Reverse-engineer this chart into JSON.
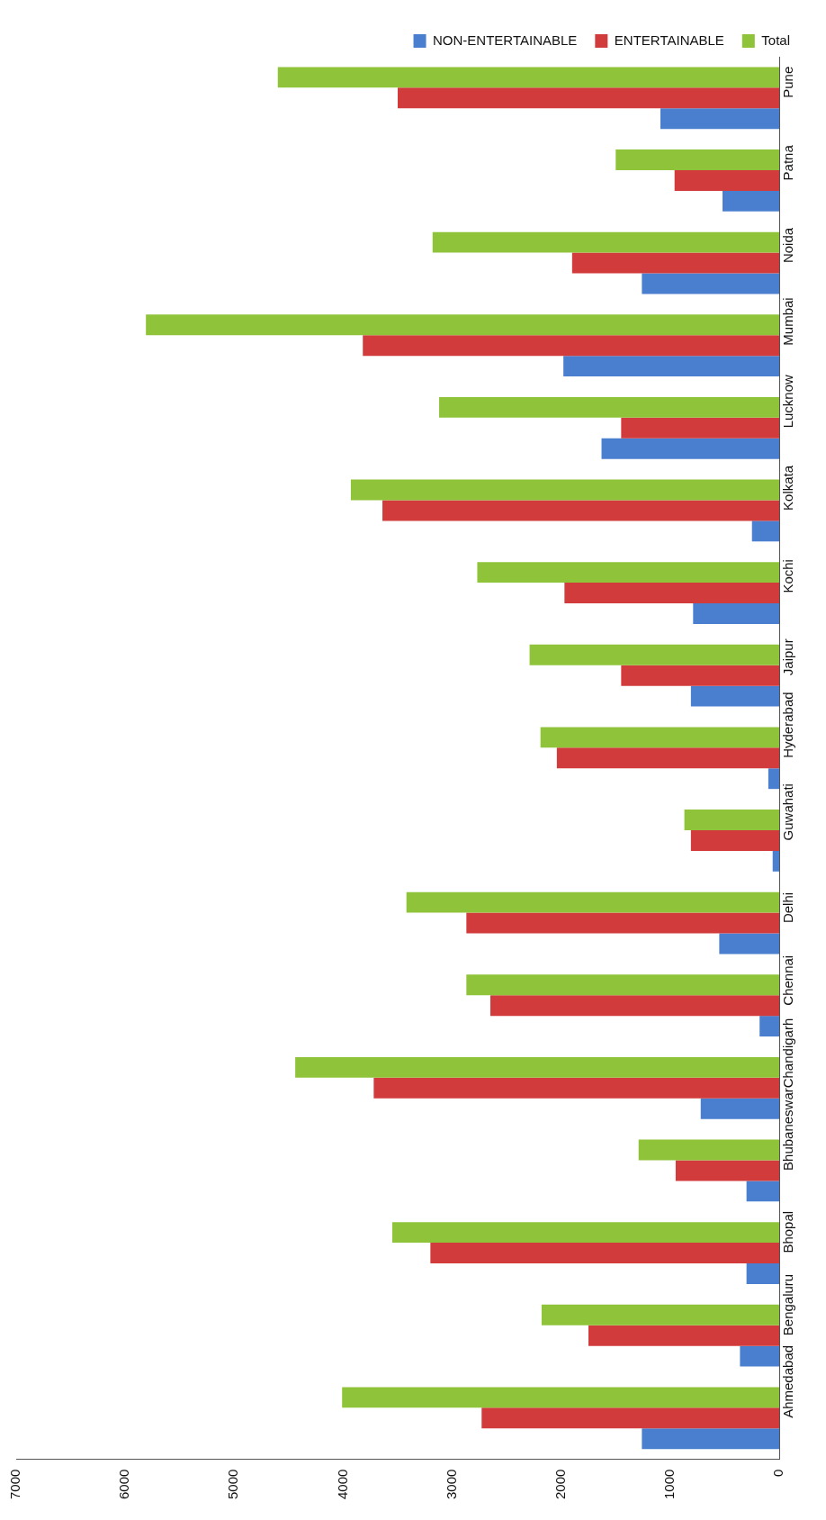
{
  "chart_data": {
    "type": "bar",
    "orientation": "horizontal",
    "categories": [
      "Pune",
      "Patna",
      "Noida",
      "Mumbai",
      "Lucknow",
      "Kolkata",
      "Kochi",
      "Jaipur",
      "Hyderabad",
      "Guwahati",
      "Delhi",
      "Chennai",
      "Chandigarh",
      "Bhubaneswar",
      "Bhopal",
      "Bengaluru",
      "Ahmedabad"
    ],
    "series": [
      {
        "name": "NON-ENTERTAINABLE",
        "color": "#4a7fd0",
        "values": [
          1090,
          520,
          1260,
          1980,
          1630,
          250,
          790,
          810,
          100,
          60,
          550,
          180,
          720,
          300,
          300,
          360,
          1260
        ]
      },
      {
        "name": "ENTERTAINABLE",
        "color": "#d23b3b",
        "values": [
          3500,
          960,
          1900,
          3820,
          1450,
          3640,
          1970,
          1450,
          2040,
          810,
          2870,
          2650,
          3720,
          950,
          3200,
          1750,
          2730
        ]
      },
      {
        "name": "Total",
        "color": "#8fc43a",
        "values": [
          4600,
          1500,
          3180,
          5810,
          3120,
          3930,
          2770,
          2290,
          2190,
          870,
          3420,
          2870,
          4440,
          1290,
          3550,
          2180,
          4010
        ]
      }
    ],
    "xlim": [
      7000,
      0
    ],
    "xticks": [
      0,
      1000,
      2000,
      3000,
      4000,
      5000,
      6000,
      7000
    ],
    "grid": false,
    "legend": "top right"
  }
}
